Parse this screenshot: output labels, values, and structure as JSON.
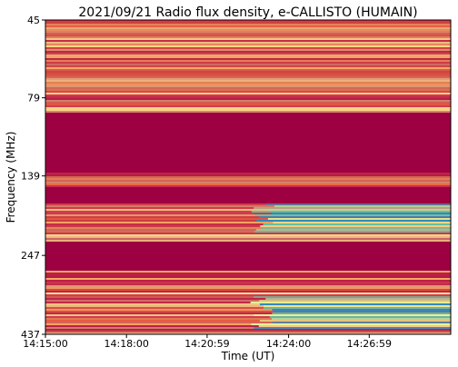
{
  "chart_data": {
    "type": "heatmap",
    "title": "2021/09/21  Radio flux density, e-CALLISTO (HUMAIN)",
    "xlabel": "Time (UT)",
    "ylabel": "Frequency (MHz)",
    "x_ticks": [
      "14:15:00",
      "14:18:00",
      "14:20:59",
      "14:24:00",
      "14:26:59"
    ],
    "y_ticks": [
      "45",
      "79",
      "139",
      "247",
      "437"
    ],
    "xlim": [
      "14:15:00",
      "14:30:00"
    ],
    "ylim_mhz": [
      45,
      437
    ],
    "y_scale": "log",
    "y_inverted": true,
    "colormap": "Spectral_r",
    "colors": {
      "low": "#9e0142",
      "mid_low": "#d53e4f",
      "mid": "#f46d43",
      "mid_high": "#fdae61",
      "high_1": "#fee08b",
      "high_2": "#e6f598",
      "high_3": "#abdda4",
      "high_4": "#66c2a5",
      "max": "#3288bd"
    },
    "features": {
      "background_bands_mhz": [
        [
          88,
          135
        ],
        [
          150,
          170
        ],
        [
          225,
          275
        ]
      ],
      "burst_start_time": "14:23:00",
      "burst_bands_mhz": [
        [
          150,
          210
        ],
        [
          330,
          420
        ]
      ]
    }
  }
}
